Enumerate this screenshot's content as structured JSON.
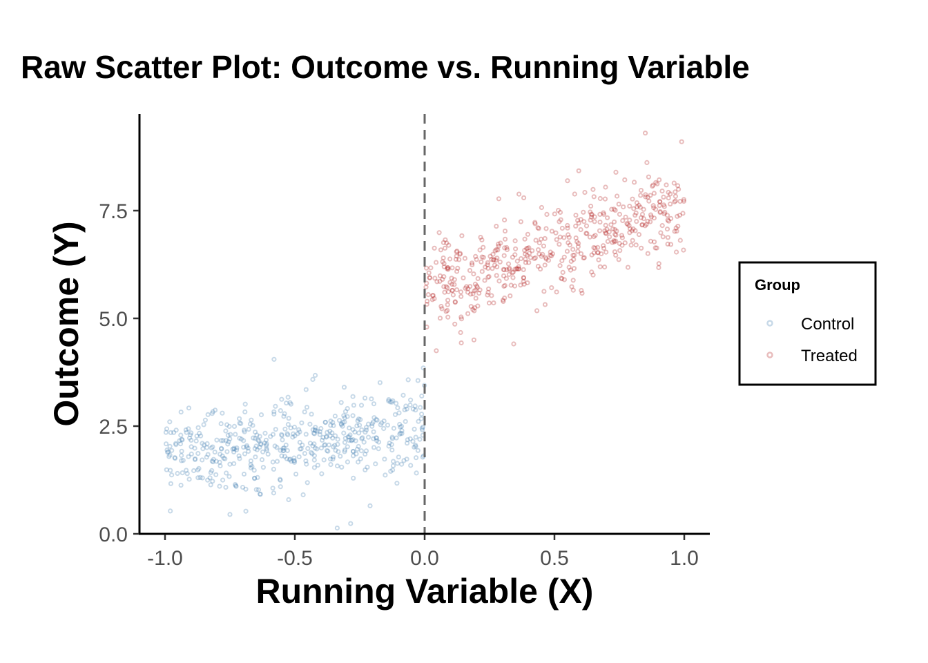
{
  "chart_data": {
    "type": "scatter",
    "title": "Raw Scatter Plot: Outcome vs. Running Variable",
    "xlabel": "Running Variable (X)",
    "ylabel": "Outcome (Y)",
    "xlim": [
      -1.1,
      1.1
    ],
    "ylim": [
      0,
      9.75
    ],
    "x_ticks": [
      -1.0,
      -0.5,
      0.0,
      0.5,
      1.0
    ],
    "x_tick_labels": [
      "-1.0",
      "-0.5",
      "0.0",
      "0.5",
      "1.0"
    ],
    "y_ticks": [
      0.0,
      2.5,
      5.0,
      7.5
    ],
    "y_tick_labels": [
      "0.0",
      "2.5",
      "5.0",
      "7.5"
    ],
    "grid": false,
    "cutoff_line": {
      "x": 0.0,
      "style": "dashed",
      "color": "#666666"
    },
    "legend": {
      "title": "Group",
      "placement": "right",
      "entries": [
        {
          "label": "Control",
          "color": "#4682B4"
        },
        {
          "label": "Treated",
          "color": "#B22222"
        }
      ]
    },
    "series": [
      {
        "name": "Control",
        "color": "#4682B4",
        "x_range": [
          -1.0,
          0.0
        ],
        "n": 500,
        "model": {
          "intercept": 2.4,
          "slope": 0.5,
          "sd": 0.5
        },
        "notable_points": [
          [
            -0.58,
            4.05
          ],
          [
            -0.75,
            0.45
          ],
          [
            -0.21,
            0.65
          ],
          [
            -0.005,
            3.85
          ]
        ]
      },
      {
        "name": "Treated",
        "color": "#B22222",
        "x_range": [
          0.0,
          1.0
        ],
        "n": 500,
        "model": {
          "intercept": 5.65,
          "slope": 2.0,
          "sd": 0.5
        },
        "notable_points": [
          [
            0.85,
            9.3
          ],
          [
            0.19,
            4.5
          ],
          [
            0.045,
            4.25
          ],
          [
            0.99,
            9.1
          ]
        ]
      }
    ]
  }
}
